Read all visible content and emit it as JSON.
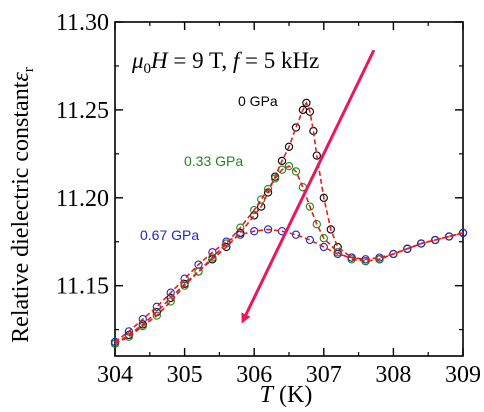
{
  "chart_data": {
    "type": "scatter",
    "conditions_label": {
      "mu": "μ",
      "mu_sub": "0",
      "H": "H",
      "eq_field": " = 9 T, ",
      "f": "f",
      "eq_freq": " = 5 kHz"
    },
    "xlabel": {
      "var": "T",
      "unit": " (K)"
    },
    "ylabel": {
      "text": "Relative dielectric constant",
      "sym": "ε",
      "sub": "r"
    },
    "xlim": [
      304,
      309
    ],
    "ylim": [
      11.11,
      11.3
    ],
    "x_ticks": [
      304,
      305,
      306,
      307,
      308,
      309
    ],
    "x_tick_labels": [
      "304",
      "305",
      "306",
      "307",
      "308",
      "309"
    ],
    "y_ticks": [
      11.15,
      11.2,
      11.25,
      11.3
    ],
    "y_tick_labels": [
      "11.15",
      "11.20",
      "11.25",
      "11.30"
    ],
    "series": [
      {
        "name": "0 GPa",
        "color": "#000000",
        "fit_color": "#e0201c",
        "marker": "circle-open",
        "x": [
          304.0,
          304.2,
          304.4,
          304.6,
          304.8,
          305.0,
          305.2,
          305.4,
          305.6,
          305.8,
          306.0,
          306.1,
          306.2,
          306.3,
          306.4,
          306.5,
          306.6,
          306.7,
          306.75,
          306.8,
          306.85,
          306.9,
          307.0,
          307.1,
          307.2,
          307.4,
          307.6,
          307.8,
          308.0,
          308.2,
          308.4,
          308.6,
          308.8,
          309.0
        ],
        "y": [
          11.117,
          11.122,
          11.128,
          11.135,
          11.143,
          11.151,
          11.158,
          11.165,
          11.172,
          11.18,
          11.19,
          11.195,
          11.203,
          11.212,
          11.221,
          11.229,
          11.24,
          11.25,
          11.254,
          11.249,
          11.238,
          11.224,
          11.2,
          11.182,
          11.172,
          11.166,
          11.164,
          11.165,
          11.168,
          11.171,
          11.174,
          11.176,
          11.178,
          11.18
        ]
      },
      {
        "name": "0.33 GPa",
        "color": "#1a8a1a",
        "fit_color": "#e0201c",
        "marker": "circle-open",
        "x": [
          304.0,
          304.2,
          304.4,
          304.6,
          304.8,
          305.0,
          305.2,
          305.4,
          305.6,
          305.8,
          306.0,
          306.1,
          306.2,
          306.3,
          306.4,
          306.5,
          306.6,
          306.7,
          306.8,
          306.9,
          307.0,
          307.2,
          307.4,
          307.6,
          307.8,
          308.0,
          308.2,
          308.4,
          308.6,
          308.8,
          309.0
        ],
        "y": [
          11.117,
          11.121,
          11.127,
          11.133,
          11.141,
          11.15,
          11.158,
          11.166,
          11.174,
          11.183,
          11.193,
          11.199,
          11.205,
          11.211,
          11.216,
          11.218,
          11.215,
          11.206,
          11.195,
          11.185,
          11.177,
          11.169,
          11.165,
          11.164,
          11.165,
          11.168,
          11.171,
          11.174,
          11.176,
          11.178,
          11.18
        ]
      },
      {
        "name": "0.67 GPa",
        "color": "#1f26c8",
        "fit_color": "#e0201c",
        "marker": "circle-open",
        "x": [
          304.0,
          304.2,
          304.4,
          304.6,
          304.8,
          305.0,
          305.2,
          305.4,
          305.6,
          305.8,
          306.0,
          306.2,
          306.4,
          306.6,
          306.8,
          307.0,
          307.2,
          307.4,
          307.6,
          307.8,
          308.0,
          308.2,
          308.4,
          308.6,
          308.8,
          309.0
        ],
        "y": [
          11.118,
          11.124,
          11.131,
          11.138,
          11.146,
          11.154,
          11.162,
          11.169,
          11.175,
          11.179,
          11.181,
          11.182,
          11.181,
          11.179,
          11.176,
          11.172,
          11.168,
          11.166,
          11.165,
          11.166,
          11.168,
          11.171,
          11.174,
          11.176,
          11.178,
          11.18
        ]
      }
    ],
    "arrow": {
      "color": "#e8185a",
      "from": [
        307.72,
        11.284
      ],
      "to": [
        305.85,
        11.131
      ]
    },
    "grid": false,
    "legend": "inline labels near curves"
  }
}
